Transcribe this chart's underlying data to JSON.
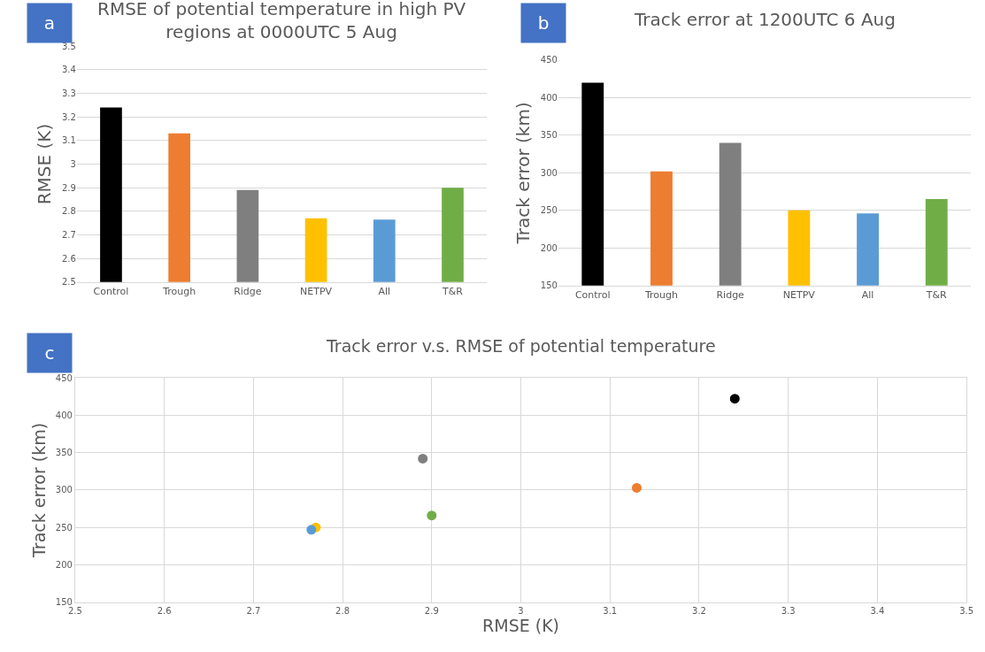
{
  "chart_data": [
    {
      "type": "bar",
      "title": "RMSE of potential temperature in high PV\nregions at 0000UTC 5 Aug",
      "ylabel": "RMSE (K)",
      "annotations": [
        "a"
      ],
      "categories": [
        "Control",
        "Trough",
        "Ridge",
        "NETPV",
        "All",
        "T&R"
      ],
      "values": [
        3.24,
        3.13,
        2.89,
        2.77,
        2.765,
        2.9
      ],
      "colors": [
        "#000000",
        "#ed7d31",
        "#7f7f7f",
        "#ffc000",
        "#5b9bd5",
        "#70ad47"
      ],
      "ylim": [
        2.5,
        3.5
      ],
      "yticks": [
        2.5,
        2.6,
        2.7,
        2.8,
        2.9,
        3,
        3.1,
        3.2,
        3.3,
        3.4,
        3.5
      ],
      "grid": "y",
      "legend": false
    },
    {
      "type": "bar",
      "title": "Track error at 1200UTC 6 Aug",
      "ylabel": "Track error (km)",
      "annotations": [
        "b"
      ],
      "categories": [
        "Control",
        "Trough",
        "Ridge",
        "NETPV",
        "All",
        "T&R"
      ],
      "values": [
        420,
        302,
        340,
        250,
        246,
        265
      ],
      "colors": [
        "#000000",
        "#ed7d31",
        "#7f7f7f",
        "#ffc000",
        "#5b9bd5",
        "#70ad47"
      ],
      "ylim": [
        150,
        450
      ],
      "yticks": [
        150,
        200,
        250,
        300,
        350,
        400,
        450
      ],
      "grid": "y",
      "legend": false
    },
    {
      "type": "scatter",
      "title": "Track error v.s. RMSE of potential temperature",
      "xlabel": "RMSE (K)",
      "ylabel": "Track error (km)",
      "annotations": [
        "c"
      ],
      "x": [
        3.24,
        3.13,
        2.89,
        2.77,
        2.765,
        2.9
      ],
      "values": [
        422,
        303,
        342,
        250,
        247,
        266
      ],
      "colors": [
        "#000000",
        "#ed7d31",
        "#7f7f7f",
        "#ffc000",
        "#5b9bd5",
        "#70ad47"
      ],
      "marker": "circle",
      "xlim": [
        2.5,
        3.5
      ],
      "xticks": [
        2.5,
        2.6,
        2.7,
        2.8,
        2.9,
        3,
        3.1,
        3.2,
        3.3,
        3.4,
        3.5
      ],
      "ylim": [
        150,
        450
      ],
      "yticks": [
        150,
        200,
        250,
        300,
        350,
        400,
        450
      ],
      "grid": true,
      "legend": false
    }
  ]
}
